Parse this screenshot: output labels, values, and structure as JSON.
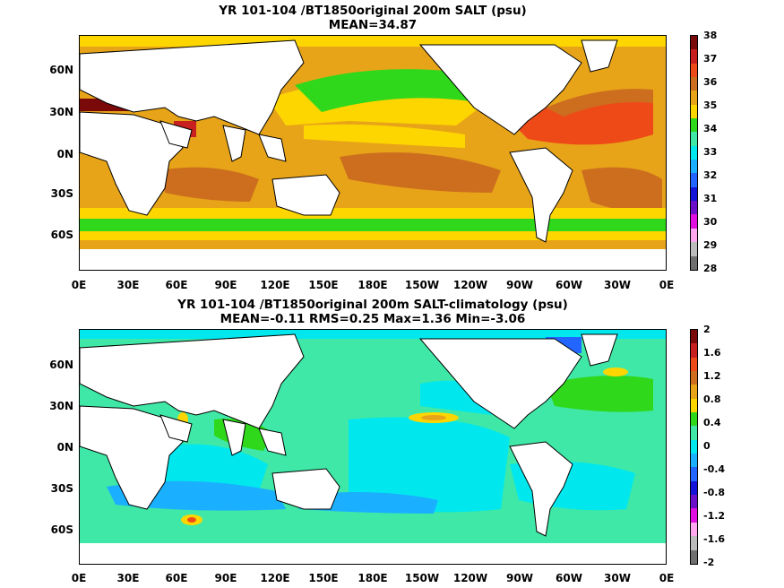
{
  "panels": [
    {
      "title_line1": "YR 101-104 /BT1850original 200m SALT (psu)",
      "title_line2": "MEAN=34.87",
      "lat_labels": [
        "60N",
        "30N",
        "0N",
        "30S",
        "60S"
      ],
      "lon_labels": [
        "0E",
        "30E",
        "60E",
        "90E",
        "120E",
        "150E",
        "180E",
        "150W",
        "120W",
        "90W",
        "60W",
        "30W",
        "0E"
      ],
      "colorbar_labels": [
        "38",
        "37",
        "36",
        "35",
        "34",
        "33",
        "32",
        "31",
        "30",
        "29",
        "28"
      ],
      "colorbar_colors": [
        "#7a0a0a",
        "#c8201e",
        "#ee4a18",
        "#cc6e1e",
        "#e8a418",
        "#fdd600",
        "#2fd81a",
        "#3fe8a6",
        "#00e8ee",
        "#1ab0ff",
        "#2266ff",
        "#1414d8",
        "#6a10c8",
        "#e010e0",
        "#ffa8f0",
        "#bcbcbc",
        "#707070"
      ]
    },
    {
      "title_line1": "YR 101-104 /BT1850original 200m SALT-climatology (psu)",
      "title_line2": "MEAN=-0.11   RMS=0.25   Max=1.36   Min=-3.06",
      "lat_labels": [
        "60N",
        "30N",
        "0N",
        "30S",
        "60S"
      ],
      "lon_labels": [
        "0E",
        "30E",
        "60E",
        "90E",
        "120E",
        "150E",
        "180E",
        "150W",
        "120W",
        "90W",
        "60W",
        "30W",
        "0E"
      ],
      "colorbar_labels": [
        "2",
        "1.6",
        "1.2",
        "0.8",
        "0.4",
        "0",
        "-0.4",
        "-0.8",
        "-1.2",
        "-1.6",
        "-2"
      ],
      "colorbar_colors": [
        "#7a0a0a",
        "#c8201e",
        "#ee4a18",
        "#cc6e1e",
        "#e8a418",
        "#fdd600",
        "#2fd81a",
        "#3fe8a6",
        "#00e8ee",
        "#1ab0ff",
        "#2266ff",
        "#1414d8",
        "#6a10c8",
        "#e010e0",
        "#ffa8f0",
        "#bcbcbc",
        "#707070"
      ]
    }
  ],
  "colors": {
    "land": "#ffffff",
    "coast": "#000000"
  }
}
